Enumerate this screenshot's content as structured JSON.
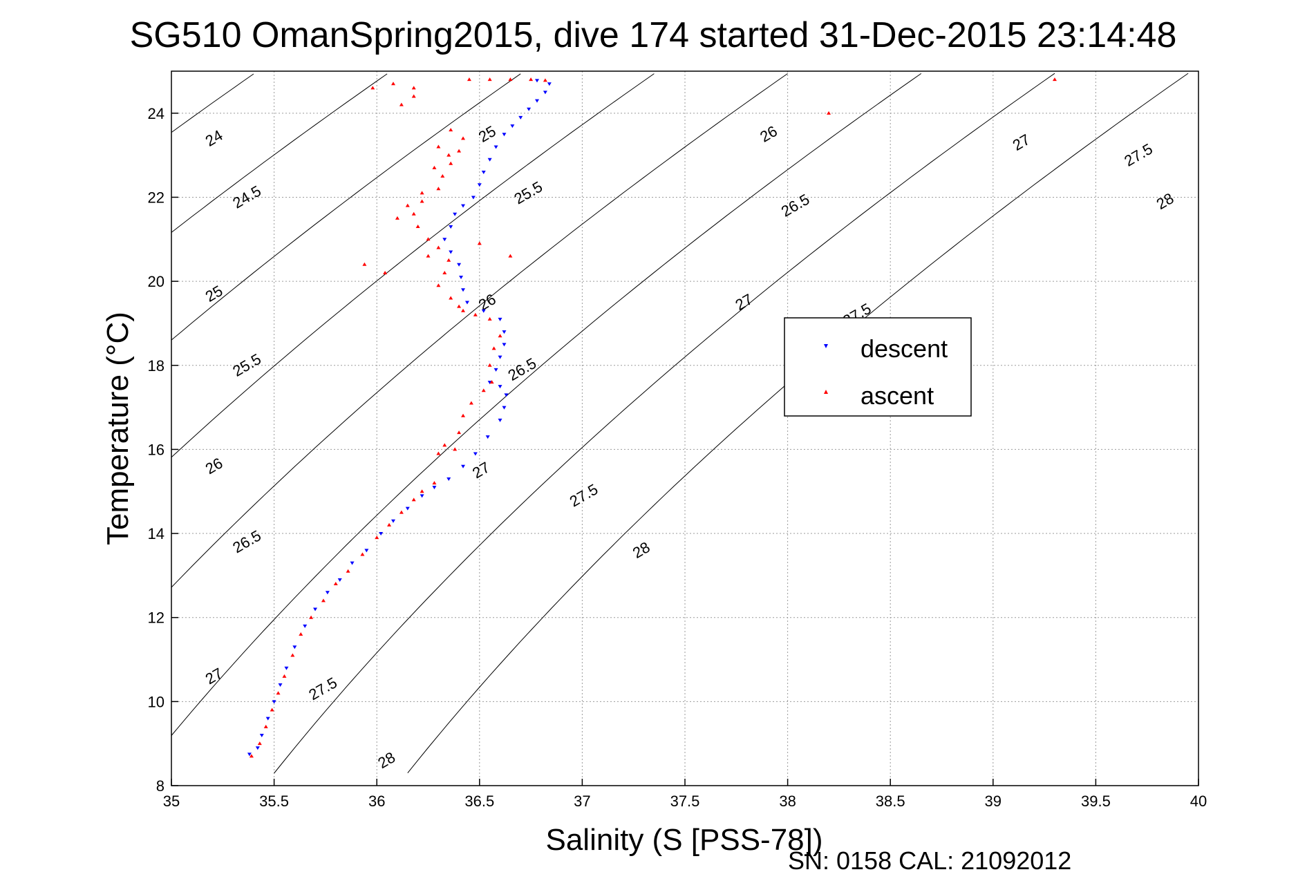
{
  "chart_data": {
    "type": "scatter",
    "title": "SG510 OmanSpring2015, dive 174 started 31-Dec-2015 23:14:48",
    "xlabel": "Salinity (S [PSS-78])",
    "ylabel": "Temperature (°C)",
    "xlim": [
      35,
      40
    ],
    "ylim": [
      8,
      25
    ],
    "xticks": [
      35,
      35.5,
      36,
      36.5,
      37,
      37.5,
      38,
      38.5,
      39,
      39.5,
      40
    ],
    "xtick_labels": [
      "35",
      "35.5",
      "36",
      "36.5",
      "37",
      "37.5",
      "38",
      "38.5",
      "39",
      "39.5",
      "40"
    ],
    "yticks": [
      8,
      10,
      12,
      14,
      16,
      18,
      20,
      22,
      24
    ],
    "ytick_labels": [
      "8",
      "10",
      "12",
      "14",
      "16",
      "18",
      "20",
      "22",
      "24"
    ],
    "grid": true,
    "legend_position": "right-middle",
    "series": [
      {
        "name": "descent",
        "color": "#0000ff",
        "marker": "triangle-down",
        "points": [
          [
            35.38,
            8.75
          ],
          [
            35.42,
            8.9
          ],
          [
            35.44,
            9.2
          ],
          [
            35.47,
            9.6
          ],
          [
            35.5,
            10.0
          ],
          [
            35.53,
            10.4
          ],
          [
            35.56,
            10.8
          ],
          [
            35.6,
            11.3
          ],
          [
            35.65,
            11.8
          ],
          [
            35.7,
            12.2
          ],
          [
            35.76,
            12.6
          ],
          [
            35.82,
            12.9
          ],
          [
            35.88,
            13.3
          ],
          [
            35.95,
            13.6
          ],
          [
            36.02,
            14.0
          ],
          [
            36.08,
            14.3
          ],
          [
            36.15,
            14.6
          ],
          [
            36.22,
            14.9
          ],
          [
            36.28,
            15.1
          ],
          [
            36.35,
            15.3
          ],
          [
            36.42,
            15.6
          ],
          [
            36.48,
            15.9
          ],
          [
            36.54,
            16.3
          ],
          [
            36.6,
            16.7
          ],
          [
            36.62,
            17.0
          ],
          [
            36.63,
            17.3
          ],
          [
            36.6,
            17.5
          ],
          [
            36.55,
            17.6
          ],
          [
            36.58,
            17.9
          ],
          [
            36.6,
            18.2
          ],
          [
            36.62,
            18.5
          ],
          [
            36.62,
            18.8
          ],
          [
            36.6,
            19.1
          ],
          [
            36.52,
            19.3
          ],
          [
            36.44,
            19.5
          ],
          [
            36.42,
            19.8
          ],
          [
            36.41,
            20.1
          ],
          [
            36.4,
            20.4
          ],
          [
            36.36,
            20.7
          ],
          [
            36.33,
            21.0
          ],
          [
            36.36,
            21.3
          ],
          [
            36.38,
            21.6
          ],
          [
            36.42,
            21.8
          ],
          [
            36.47,
            22.0
          ],
          [
            36.5,
            22.3
          ],
          [
            36.52,
            22.6
          ],
          [
            36.55,
            22.9
          ],
          [
            36.58,
            23.2
          ],
          [
            36.62,
            23.5
          ],
          [
            36.66,
            23.7
          ],
          [
            36.7,
            23.9
          ],
          [
            36.74,
            24.1
          ],
          [
            36.78,
            24.3
          ],
          [
            36.82,
            24.5
          ],
          [
            36.84,
            24.7
          ],
          [
            36.78,
            24.78
          ]
        ]
      },
      {
        "name": "ascent",
        "color": "#ff0000",
        "marker": "triangle-up",
        "points": [
          [
            35.39,
            8.7
          ],
          [
            35.43,
            9.0
          ],
          [
            35.46,
            9.4
          ],
          [
            35.49,
            9.8
          ],
          [
            35.52,
            10.2
          ],
          [
            35.55,
            10.6
          ],
          [
            35.59,
            11.1
          ],
          [
            35.63,
            11.6
          ],
          [
            35.68,
            12.0
          ],
          [
            35.74,
            12.4
          ],
          [
            35.8,
            12.8
          ],
          [
            35.86,
            13.1
          ],
          [
            35.93,
            13.5
          ],
          [
            36.0,
            13.9
          ],
          [
            36.06,
            14.2
          ],
          [
            36.12,
            14.5
          ],
          [
            36.18,
            14.8
          ],
          [
            36.22,
            15.0
          ],
          [
            36.28,
            15.2
          ],
          [
            36.3,
            15.9
          ],
          [
            36.33,
            16.1
          ],
          [
            36.38,
            16.0
          ],
          [
            36.4,
            16.4
          ],
          [
            36.42,
            16.8
          ],
          [
            36.46,
            17.1
          ],
          [
            36.52,
            17.4
          ],
          [
            36.56,
            17.6
          ],
          [
            36.55,
            18.0
          ],
          [
            36.57,
            18.4
          ],
          [
            36.6,
            18.7
          ],
          [
            36.55,
            19.1
          ],
          [
            36.48,
            19.2
          ],
          [
            36.4,
            19.4
          ],
          [
            36.36,
            19.6
          ],
          [
            36.3,
            19.9
          ],
          [
            36.33,
            20.2
          ],
          [
            36.35,
            20.5
          ],
          [
            36.3,
            20.8
          ],
          [
            36.25,
            21.0
          ],
          [
            36.2,
            21.3
          ],
          [
            36.18,
            21.6
          ],
          [
            36.22,
            21.9
          ],
          [
            36.3,
            22.2
          ],
          [
            36.32,
            22.5
          ],
          [
            36.36,
            22.8
          ],
          [
            36.4,
            23.1
          ],
          [
            36.42,
            23.4
          ],
          [
            36.36,
            23.6
          ],
          [
            36.3,
            23.2
          ],
          [
            36.22,
            22.1
          ],
          [
            36.15,
            21.8
          ],
          [
            36.1,
            21.5
          ],
          [
            36.25,
            20.6
          ],
          [
            36.04,
            20.2
          ],
          [
            35.94,
            20.4
          ],
          [
            36.12,
            24.2
          ],
          [
            36.18,
            24.4
          ],
          [
            36.08,
            24.7
          ],
          [
            35.98,
            24.6
          ],
          [
            36.45,
            24.8
          ],
          [
            36.55,
            24.8
          ],
          [
            36.65,
            24.8
          ],
          [
            36.75,
            24.8
          ],
          [
            36.82,
            24.78
          ],
          [
            36.65,
            20.6
          ],
          [
            36.5,
            20.9
          ],
          [
            36.42,
            19.3
          ],
          [
            36.35,
            23.0
          ],
          [
            36.28,
            22.7
          ],
          [
            36.18,
            24.6
          ],
          [
            38.2,
            24.0
          ],
          [
            39.3,
            24.8
          ]
        ]
      }
    ],
    "contours": [
      {
        "label": "24",
        "label_positions": [
          [
            35.22,
            23.3
          ]
        ]
      },
      {
        "label": "24.5",
        "label_positions": [
          [
            35.38,
            21.9
          ]
        ]
      },
      {
        "label": "25",
        "label_positions": [
          [
            35.22,
            19.6
          ],
          [
            36.55,
            23.4
          ]
        ]
      },
      {
        "label": "25.5",
        "label_positions": [
          [
            35.38,
            17.9
          ],
          [
            36.75,
            22.0
          ]
        ]
      },
      {
        "label": "26",
        "label_positions": [
          [
            35.22,
            15.5
          ],
          [
            36.55,
            19.4
          ],
          [
            37.92,
            23.4
          ]
        ]
      },
      {
        "label": "26.5",
        "label_positions": [
          [
            35.38,
            13.7
          ],
          [
            36.72,
            17.8
          ],
          [
            38.05,
            21.7
          ]
        ]
      },
      {
        "label": "27",
        "label_positions": [
          [
            35.22,
            10.5
          ],
          [
            36.52,
            15.4
          ],
          [
            37.8,
            19.4
          ],
          [
            39.15,
            23.2
          ]
        ]
      },
      {
        "label": "27.5",
        "label_positions": [
          [
            35.75,
            10.2
          ],
          [
            37.02,
            14.8
          ],
          [
            38.35,
            19.1
          ],
          [
            39.72,
            22.9
          ]
        ]
      },
      {
        "label": "28",
        "label_positions": [
          [
            36.06,
            8.5
          ],
          [
            37.3,
            13.5
          ],
          [
            39.85,
            21.8
          ]
        ]
      }
    ],
    "legend": {
      "entries": [
        "descent",
        "ascent"
      ]
    },
    "footer": "SN: 0158  CAL: 21092012"
  }
}
